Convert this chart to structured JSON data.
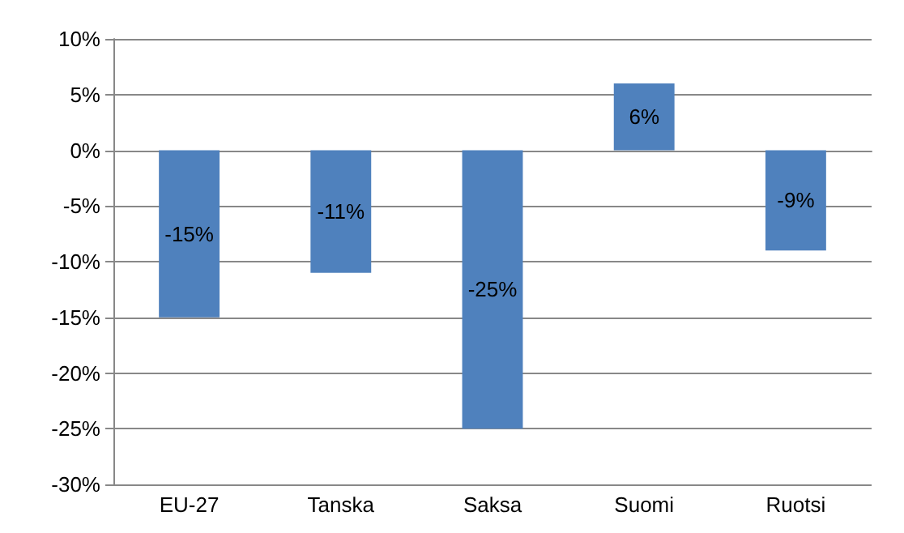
{
  "chart_data": {
    "type": "bar",
    "categories": [
      "EU-27",
      "Tanska",
      "Saksa",
      "Suomi",
      "Ruotsi"
    ],
    "values": [
      -15,
      -11,
      -25,
      6,
      -9
    ],
    "value_labels": [
      "-15%",
      "-11%",
      "-25%",
      "6%",
      "-9%"
    ],
    "color": "#4f81bd",
    "ylim": [
      -30,
      10
    ],
    "yticks": [
      {
        "value": -30,
        "label": "-30%"
      },
      {
        "value": -25,
        "label": "-25%"
      },
      {
        "value": -20,
        "label": "-20%"
      },
      {
        "value": -15,
        "label": "-15%"
      },
      {
        "value": -10,
        "label": "-10%"
      },
      {
        "value": -5,
        "label": "-5%"
      },
      {
        "value": 0,
        "label": "0%"
      },
      {
        "value": 5,
        "label": "5%"
      },
      {
        "value": 10,
        "label": "10%"
      }
    ],
    "grid": "y"
  }
}
